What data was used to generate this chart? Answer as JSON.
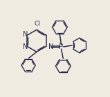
{
  "bg_color": "#f0ebe0",
  "line_color": "#2a2a4a",
  "line_width": 1.1,
  "figsize": [
    1.59,
    1.41
  ],
  "dpi": 100,
  "xlim": [
    0,
    10
  ],
  "ylim": [
    0,
    10
  ]
}
